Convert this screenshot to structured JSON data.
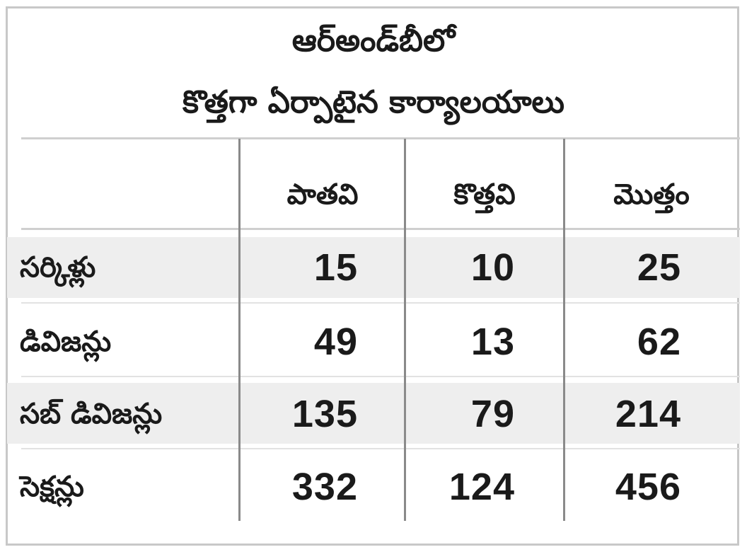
{
  "title": {
    "line1": "ఆర్‌అండ్‌బీలో",
    "line2": "కొత్తగా ఏర్పాటైన కార్యాలయాలు"
  },
  "columns": [
    "పాతవి",
    "కొత్తవి",
    "మొత్తం"
  ],
  "rows": [
    {
      "label": "సర్కిళ్లు",
      "values": [
        "15",
        "10",
        "25"
      ]
    },
    {
      "label": "డివిజన్లు",
      "values": [
        "49",
        "13",
        "62"
      ]
    },
    {
      "label": "సబ్ డివిజన్లు",
      "values": [
        "135",
        "79",
        "214"
      ]
    },
    {
      "label": "సెక్షన్లు",
      "values": [
        "332",
        "124",
        "456"
      ]
    }
  ]
}
